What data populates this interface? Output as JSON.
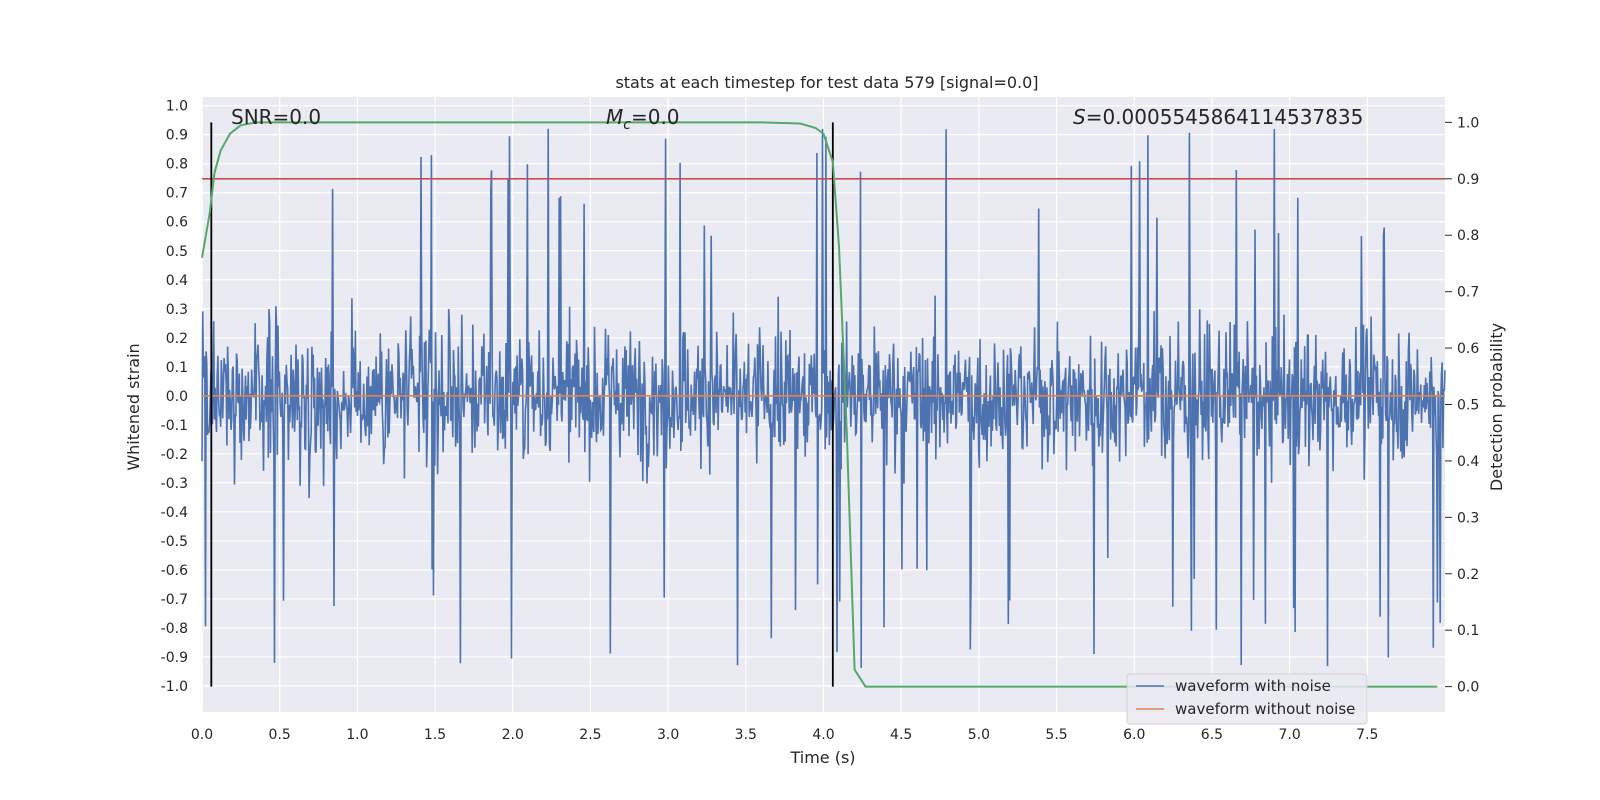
{
  "chart_data": {
    "type": "line",
    "title": "stats at each timestep for test data 579 [signal=0.0]",
    "xlabel": "Time (s)",
    "ylabel": "Whitened strain",
    "y2label": "Detection probability",
    "xlim": [
      0.0,
      8.0
    ],
    "ylim": [
      -1.09,
      1.03
    ],
    "y2lim": [
      -0.045,
      1.045
    ],
    "xticks": [
      "0.0",
      "0.5",
      "1.0",
      "1.5",
      "2.0",
      "2.5",
      "3.0",
      "3.5",
      "4.0",
      "4.5",
      "5.0",
      "5.5",
      "6.0",
      "6.5",
      "7.0",
      "7.5"
    ],
    "yticks": [
      "1.0",
      "0.9",
      "0.8",
      "0.7",
      "0.6",
      "0.5",
      "0.4",
      "0.3",
      "0.2",
      "0.1",
      "0.0",
      "-0.1",
      "-0.2",
      "-0.3",
      "-0.4",
      "-0.5",
      "-0.6",
      "-0.7",
      "-0.8",
      "-0.9",
      "-1.0"
    ],
    "y2ticks": [
      "0.0",
      "0.1",
      "0.2",
      "0.3",
      "0.4",
      "0.5",
      "0.6",
      "0.7",
      "0.8",
      "0.9",
      "1.0"
    ],
    "grid": true,
    "legend_position": "lower-right",
    "annotations": {
      "snr": "SNR=0.0",
      "mc_symbol": "M",
      "mc_sub": "c",
      "mc_value": "=0.0",
      "s_symbol": "S",
      "s_value": "=0.0005545864114537835"
    },
    "series": [
      {
        "name": "waveform with noise",
        "color": "#4c72b0",
        "noise_amplitude": 0.35,
        "peak_max": 0.92,
        "trough_min": -1.02
      },
      {
        "name": "waveform without noise",
        "color": "#dd8452",
        "values": [
          [
            0.0,
            0.0
          ],
          [
            8.0,
            0.0
          ]
        ]
      }
    ],
    "detection_probability": {
      "color": "#55a868",
      "points": [
        [
          0.0,
          0.76
        ],
        [
          0.05,
          0.84
        ],
        [
          0.08,
          0.91
        ],
        [
          0.12,
          0.95
        ],
        [
          0.18,
          0.98
        ],
        [
          0.25,
          0.995
        ],
        [
          0.35,
          1.0
        ],
        [
          1.0,
          1.0
        ],
        [
          2.0,
          1.0
        ],
        [
          3.0,
          1.0
        ],
        [
          3.6,
          1.0
        ],
        [
          3.85,
          0.998
        ],
        [
          3.95,
          0.99
        ],
        [
          4.0,
          0.98
        ],
        [
          4.06,
          0.93
        ],
        [
          4.1,
          0.78
        ],
        [
          4.15,
          0.45
        ],
        [
          4.2,
          0.03
        ],
        [
          4.27,
          0.0
        ],
        [
          5.0,
          0.0
        ],
        [
          6.0,
          0.0
        ],
        [
          7.0,
          0.0
        ],
        [
          7.95,
          0.0
        ]
      ]
    },
    "threshold": {
      "value": 0.9,
      "color": "#c44e52",
      "axis": "y2"
    },
    "vlines": [
      {
        "x": 0.06,
        "color": "#000000"
      },
      {
        "x": 4.06,
        "color": "#000000"
      }
    ]
  }
}
